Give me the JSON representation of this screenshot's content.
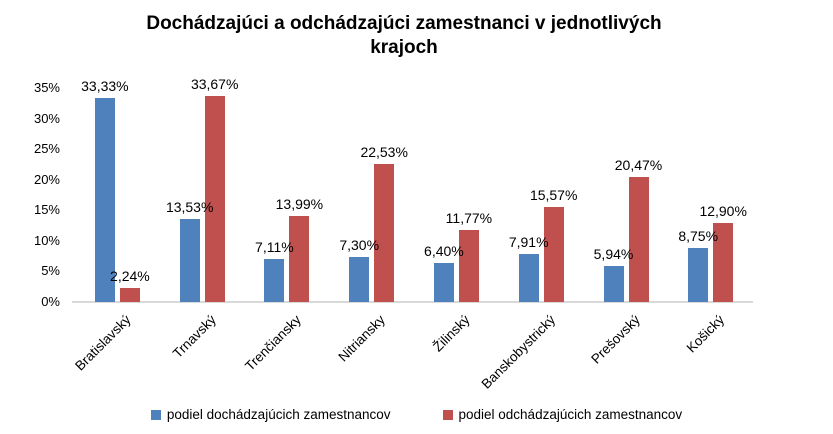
{
  "chart_data": {
    "type": "bar",
    "title": "Dochádzajúci a odchádzajúci zamestnanci v jednotlivých krajoch",
    "title_lines": [
      "Dochádzajúci a odchádzajúci zamestnanci v jednotlivých",
      "krajoch"
    ],
    "categories": [
      "Bratislavský",
      "Trnavský",
      "Trenčiansky",
      "Nitriansky",
      "Žilinský",
      "Banskobystrický",
      "Prešovský",
      "Košický"
    ],
    "series": [
      {
        "name": "podiel dochádzajúcich zamestnancov",
        "color": "#4F81BD",
        "values": [
          33.33,
          13.53,
          7.11,
          7.3,
          6.4,
          7.91,
          5.94,
          8.75
        ],
        "labels": [
          "33,33%",
          "13,53%",
          "7,11%",
          "7,30%",
          "6,40%",
          "7,91%",
          "5,94%",
          "8,75%"
        ]
      },
      {
        "name": "podiel odchádzajúcich zamestnancov",
        "color": "#C0504D",
        "values": [
          2.24,
          33.67,
          13.99,
          22.53,
          11.77,
          15.57,
          20.47,
          12.9
        ],
        "labels": [
          "2,24%",
          "33,67%",
          "13,99%",
          "22,53%",
          "11,77%",
          "15,57%",
          "20,47%",
          "12,90%"
        ]
      }
    ],
    "y_axis": {
      "min": 0,
      "max": 35,
      "step": 5,
      "tick_labels": [
        "0%",
        "5%",
        "10%",
        "15%",
        "20%",
        "25%",
        "30%",
        "35%"
      ]
    },
    "x_axis": {
      "label_rotation_deg": -45
    },
    "legend_position": "bottom",
    "grid": false,
    "colors": {
      "axis_line": "#D9D9D9",
      "text": "#000000",
      "background": "#FFFFFF"
    }
  }
}
